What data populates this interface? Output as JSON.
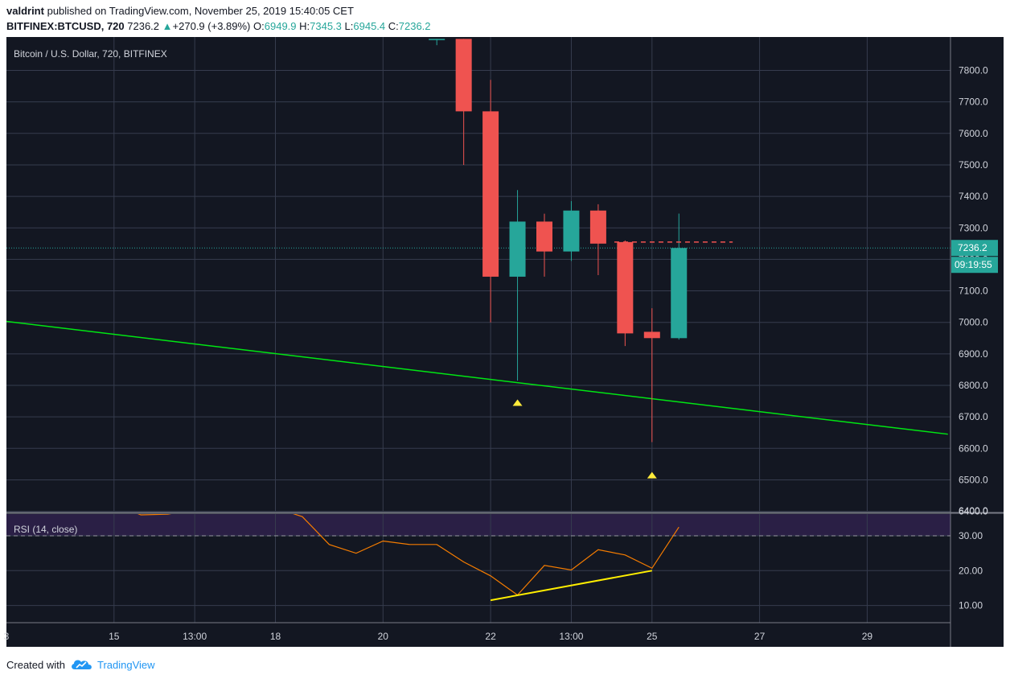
{
  "header": {
    "author": "valdrint",
    "published_text": "published on TradingView.com, November 25, 2019 15:40:05 CET",
    "symbol": "BITFINEX:BTCUSD, 720",
    "last": "7236.2",
    "arrow": "▲",
    "change": "+270.9 (+3.89%)",
    "o_label": "O:",
    "o_value": "6949.9",
    "h_label": "H:",
    "h_value": "7345.3",
    "l_label": "L:",
    "l_value": "6945.4",
    "c_label": "C:",
    "c_value": "7236.2"
  },
  "footer": {
    "created_with": "Created with",
    "brand": "TradingView"
  },
  "colors": {
    "background": "#131722",
    "grid": "#363c4e",
    "up": "#26a69a",
    "down": "#ef5350",
    "trendline": "#00e613",
    "rsi_line": "#f57c00",
    "rsi_divergence": "#ffee00",
    "rsi_band": "#2a1f45",
    "marker": "#ffeb3b",
    "axis_text": "#d1d4dc"
  },
  "chart_data": [
    {
      "type": "candlestick",
      "title": "Bitcoin / U.S. Dollar, 720, BITFINEX",
      "ylim": [
        6400,
        7900
      ],
      "y_ticks": [
        "6400.0",
        "6500.0",
        "6600.0",
        "6700.0",
        "6800.0",
        "6900.0",
        "7000.0",
        "7100.0",
        "7200.0",
        "7300.0",
        "7400.0",
        "7500.0",
        "7600.0",
        "7700.0",
        "7800.0"
      ],
      "x_ticks": [
        {
          "label": "3",
          "t": -0.5
        },
        {
          "label": "15",
          "t": 3.5
        },
        {
          "label": "13:00",
          "t": 6.5
        },
        {
          "label": "18",
          "t": 9.5
        },
        {
          "label": "20",
          "t": 13.5
        },
        {
          "label": "22",
          "t": 17.5
        },
        {
          "label": "13:00",
          "t": 20.5
        },
        {
          "label": "25",
          "t": 23.5
        },
        {
          "label": "27",
          "t": 27.5
        },
        {
          "label": "29",
          "t": 31.5
        }
      ],
      "candles": [
        {
          "t": 15.5,
          "o": 7900,
          "h": 7900,
          "l": 7880,
          "c": 7900
        },
        {
          "t": 16.5,
          "o": 7900,
          "h": 7900,
          "l": 7500,
          "c": 7670
        },
        {
          "t": 17.5,
          "o": 7670,
          "h": 7770,
          "l": 7000,
          "c": 7145
        },
        {
          "t": 18.5,
          "o": 7145,
          "h": 7420,
          "l": 6815,
          "c": 7320
        },
        {
          "t": 19.5,
          "o": 7320,
          "h": 7345,
          "l": 7145,
          "c": 7225
        },
        {
          "t": 20.5,
          "o": 7225,
          "h": 7385,
          "l": 7195,
          "c": 7355
        },
        {
          "t": 21.5,
          "o": 7355,
          "h": 7375,
          "l": 7150,
          "c": 7250
        },
        {
          "t": 22.5,
          "o": 7255,
          "h": 7260,
          "l": 6925,
          "c": 6965
        },
        {
          "t": 23.5,
          "o": 6970,
          "h": 7045,
          "l": 6620,
          "c": 6950
        },
        {
          "t": 24.5,
          "o": 6949.9,
          "h": 7345.3,
          "l": 6945.4,
          "c": 7236.2
        }
      ],
      "trendline": [
        {
          "t": -0.5,
          "v": 7003
        },
        {
          "t": 34.5,
          "v": 6645
        }
      ],
      "resistance_dashed": {
        "t_from": 22.1,
        "t_to": 26.5,
        "v": 7255
      },
      "current_price": "7236.2",
      "countdown": "09:19:55",
      "markers": [
        {
          "t": 18.5,
          "v": 6745
        },
        {
          "t": 23.5,
          "v": 6515
        }
      ]
    },
    {
      "type": "line",
      "title": "RSI (14, close)",
      "ylim": [
        5,
        37.5
      ],
      "y_ticks": [
        "10.00",
        "20.00",
        "30.00"
      ],
      "band": [
        30,
        37.5
      ],
      "level_line": 30,
      "series": [
        {
          "x": [
            3.5,
            4.5,
            5.5,
            6.5,
            7.5,
            8.5,
            9.5,
            10.5,
            11.5,
            12.5,
            13.5,
            14.5,
            15.5,
            16.5,
            17.5,
            18.5,
            19.5,
            20.5,
            21.5,
            22.5,
            23.5,
            24.5
          ],
          "y": [
            39,
            36,
            36.2,
            37.5,
            39,
            40,
            38,
            35.5,
            27.5,
            25,
            28.5,
            27.5,
            27.5,
            22.5,
            18.5,
            13,
            21.5,
            20.2,
            26,
            24.5,
            20.7,
            32.5
          ]
        }
      ],
      "divergence_line": [
        {
          "x": 17.5,
          "y": 11.5
        },
        {
          "x": 23.5,
          "y": 20
        }
      ]
    }
  ]
}
